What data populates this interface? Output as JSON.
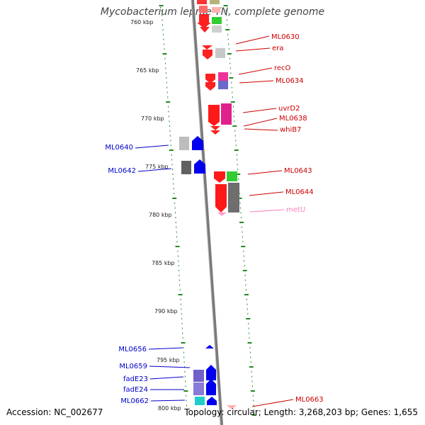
{
  "title": "Mycobacterium leprae TN, complete genome",
  "footer": {
    "accession": "Accession: NC_002677",
    "summary": "Topology: circular; Length: 3,268,203 bp; Genes: 1,655"
  },
  "colors": {
    "forward_label": "#cc0000",
    "reverse_label": "#0000cc",
    "trna_label": "#ff7fbf",
    "tick": "#228822",
    "backbone": "#888888"
  },
  "scale_labels": [
    "760 kbp",
    "765 kbp",
    "770 kbp",
    "775 kbp",
    "780 kbp",
    "785 kbp",
    "790 kbp",
    "795 kbp",
    "800 kbp"
  ],
  "right_labels": [
    "ML0630",
    "era",
    "recO",
    "ML0634",
    "uvrD2",
    "ML0638",
    "whiB7",
    "ML0643",
    "ML0644",
    "metU",
    "ML0663"
  ],
  "left_labels": [
    "ML0640",
    "ML0642",
    "ML0656",
    "ML0659",
    "fadE23",
    "fadE24",
    "ML0662"
  ]
}
